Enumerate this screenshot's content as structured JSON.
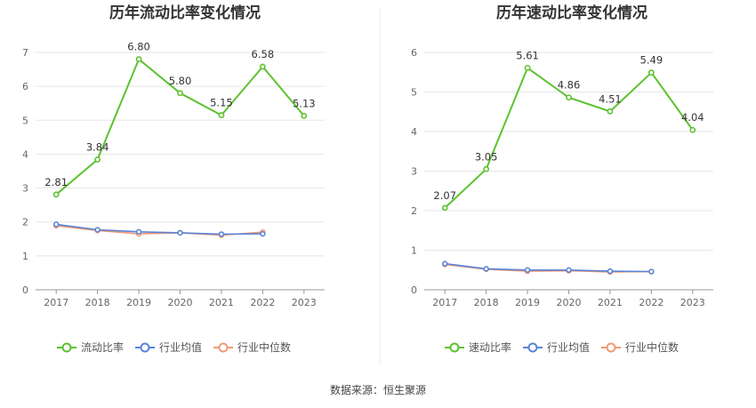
{
  "colors": {
    "primary": "#5cc22e",
    "industry_avg": "#5b84d6",
    "industry_median": "#f09a78",
    "grid": "#e6e6e6",
    "axis": "#999999"
  },
  "source_text": "数据来源：恒生聚源",
  "chart_data": [
    {
      "type": "line",
      "title": "历年流动比率变化情况",
      "categories": [
        "2017",
        "2018",
        "2019",
        "2020",
        "2021",
        "2022",
        "2023"
      ],
      "yticks": [
        "0",
        "1",
        "2",
        "3",
        "4",
        "5",
        "6",
        "7"
      ],
      "ylim": [
        0,
        7
      ],
      "grid": true,
      "legend_position": "bottom",
      "series": [
        {
          "name": "流动比率",
          "color": "#5cc22e",
          "values": [
            2.81,
            3.84,
            6.8,
            5.8,
            5.15,
            6.58,
            5.13
          ],
          "labels": [
            "2.81",
            "3.84",
            "6.80",
            "5.80",
            "5.15",
            "6.58",
            "5.13"
          ]
        },
        {
          "name": "行业均值",
          "color": "#5b84d6",
          "values": [
            1.93,
            1.77,
            1.71,
            1.68,
            1.64,
            1.65,
            null
          ]
        },
        {
          "name": "行业中位数",
          "color": "#f09a78",
          "values": [
            1.89,
            1.75,
            1.65,
            1.68,
            1.61,
            1.7,
            null
          ]
        }
      ]
    },
    {
      "type": "line",
      "title": "历年速动比率变化情况",
      "categories": [
        "2017",
        "2018",
        "2019",
        "2020",
        "2021",
        "2022",
        "2023"
      ],
      "yticks": [
        "0",
        "1",
        "2",
        "3",
        "4",
        "5",
        "6"
      ],
      "ylim": [
        0,
        6
      ],
      "grid": true,
      "legend_position": "bottom",
      "series": [
        {
          "name": "速动比率",
          "color": "#5cc22e",
          "values": [
            2.07,
            3.05,
            5.61,
            4.86,
            4.51,
            5.49,
            4.04
          ],
          "labels": [
            "2.07",
            "3.05",
            "5.61",
            "4.86",
            "4.51",
            "5.49",
            "4.04"
          ]
        },
        {
          "name": "行业均值",
          "color": "#5b84d6",
          "values": [
            0.66,
            0.53,
            0.5,
            0.5,
            0.47,
            0.46,
            null
          ]
        },
        {
          "name": "行业中位数",
          "color": "#f09a78",
          "values": [
            0.64,
            0.52,
            0.47,
            0.48,
            0.45,
            0.46,
            null
          ]
        }
      ]
    }
  ]
}
